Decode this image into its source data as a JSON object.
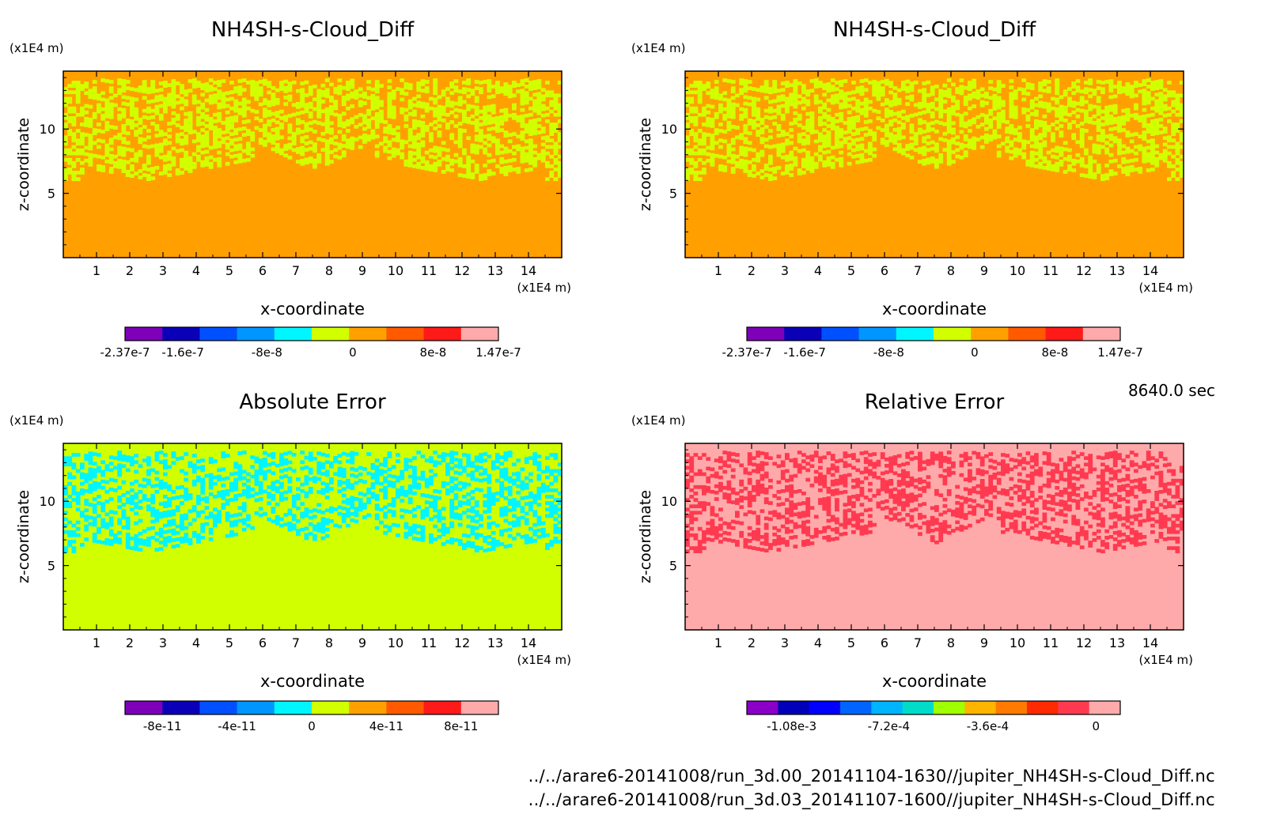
{
  "colors": {
    "absolute_error": [
      "#7e00b8",
      "#0a00b8",
      "#0050ff",
      "#0096ff",
      "#00f6ff",
      "#d2ff00",
      "#ffa000",
      "#ff5a00",
      "#ff1a1a",
      "#ffaaaa"
    ],
    "relative_error": [
      "#8a00c8",
      "#0000b8",
      "#0000ff",
      "#0064ff",
      "#00b4ff",
      "#00dcc8",
      "#a0ff00",
      "#ffb400",
      "#ff7a00",
      "#ff2a00",
      "#ff3a50",
      "#ffaaaa"
    ],
    "cloud_diff": [
      "#7e00b8",
      "#0a00b8",
      "#0050ff",
      "#0096ff",
      "#00f6ff",
      "#d2ff00",
      "#ffa000",
      "#ff5a00",
      "#ff1a1a",
      "#ffaaaa"
    ]
  },
  "timestamp": "8640.0 sec",
  "footer_paths": [
    "../../arare6-20141008/run_3d.00_20141104-1630//jupiter_NH4SH-s-Cloud_Diff.nc",
    "../../arare6-20141008/run_3d.03_20141107-1600//jupiter_NH4SH-s-Cloud_Diff.nc"
  ],
  "chart_data": [
    {
      "type": "heatmap",
      "title": "NH4SH-s-Cloud_Diff",
      "xlabel": "x-coordinate",
      "ylabel": "z-coordinate",
      "x_unit": "(x1E4 m)",
      "z_unit": "(x1E4 m)",
      "xlim": [
        0,
        15
      ],
      "ylim": [
        0,
        14.5
      ],
      "x_ticks": [
        "1",
        "2",
        "3",
        "4",
        "5",
        "6",
        "7",
        "8",
        "9",
        "10",
        "11",
        "12",
        "13",
        "14"
      ],
      "y_ticks": [
        "5",
        "10"
      ],
      "background_color": "#ffa000",
      "pattern_color": "#d2ff00",
      "colorbar_labels": [
        "-2.37e-7",
        "-1.6e-7",
        "-8e-8",
        "0",
        "8e-8",
        "1.47e-7"
      ]
    },
    {
      "type": "heatmap",
      "title": "NH4SH-s-Cloud_Diff",
      "xlabel": "x-coordinate",
      "ylabel": "z-coordinate",
      "x_unit": "(x1E4 m)",
      "z_unit": "(x1E4 m)",
      "xlim": [
        0,
        15
      ],
      "ylim": [
        0,
        14.5
      ],
      "x_ticks": [
        "1",
        "2",
        "3",
        "4",
        "5",
        "6",
        "7",
        "8",
        "9",
        "10",
        "11",
        "12",
        "13",
        "14"
      ],
      "y_ticks": [
        "5",
        "10"
      ],
      "background_color": "#ffa000",
      "pattern_color": "#d2ff00",
      "colorbar_labels": [
        "-2.37e-7",
        "-1.6e-7",
        "-8e-8",
        "0",
        "8e-8",
        "1.47e-7"
      ]
    },
    {
      "type": "heatmap",
      "title": "Absolute Error",
      "xlabel": "x-coordinate",
      "ylabel": "z-coordinate",
      "x_unit": "(x1E4 m)",
      "z_unit": "(x1E4 m)",
      "xlim": [
        0,
        15
      ],
      "ylim": [
        0,
        14.5
      ],
      "x_ticks": [
        "1",
        "2",
        "3",
        "4",
        "5",
        "6",
        "7",
        "8",
        "9",
        "10",
        "11",
        "12",
        "13",
        "14"
      ],
      "y_ticks": [
        "5",
        "10"
      ],
      "background_color": "#d2ff00",
      "pattern_color": "#00f6ff",
      "colorbar_labels": [
        "-8e-11",
        "-4e-11",
        "0",
        "4e-11",
        "8e-11"
      ]
    },
    {
      "type": "heatmap",
      "title": "Relative Error",
      "xlabel": "x-coordinate",
      "ylabel": "z-coordinate",
      "x_unit": "(x1E4 m)",
      "z_unit": "(x1E4 m)",
      "xlim": [
        0,
        15
      ],
      "ylim": [
        0,
        14.5
      ],
      "x_ticks": [
        "1",
        "2",
        "3",
        "4",
        "5",
        "6",
        "7",
        "8",
        "9",
        "10",
        "11",
        "12",
        "13",
        "14"
      ],
      "y_ticks": [
        "5",
        "10"
      ],
      "background_color": "#ffaaaa",
      "pattern_color": "#ff3a50",
      "colorbar_labels": [
        "-1.08e-3",
        "-7.2e-4",
        "-3.6e-4",
        "0"
      ]
    }
  ]
}
